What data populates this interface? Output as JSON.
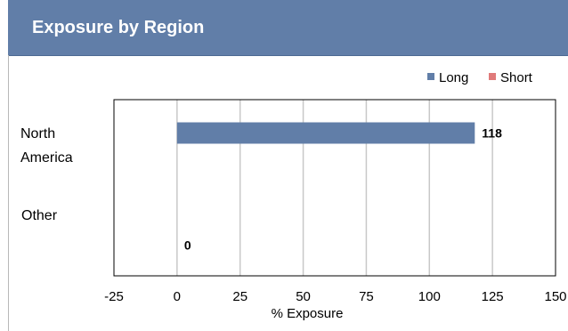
{
  "header": {
    "title": "Exposure by Region"
  },
  "colors": {
    "header_bg": "#617ea8",
    "long": "#617ea8",
    "short": "#e07a7a"
  },
  "chart_data": {
    "type": "bar",
    "orientation": "horizontal",
    "title": "Exposure by Region",
    "categories": [
      "North America",
      "Other"
    ],
    "series": [
      {
        "name": "Long",
        "values": [
          118,
          0
        ]
      },
      {
        "name": "Short",
        "values": [
          0,
          0
        ]
      }
    ],
    "data_labels": [
      "118",
      "0"
    ],
    "xlabel": "% Exposure",
    "ylabel": "",
    "xlim": [
      -25,
      150
    ],
    "xticks": [
      "-25",
      "0",
      "25",
      "50",
      "75",
      "100",
      "125",
      "150"
    ],
    "grid": true,
    "legend": "top-right"
  }
}
